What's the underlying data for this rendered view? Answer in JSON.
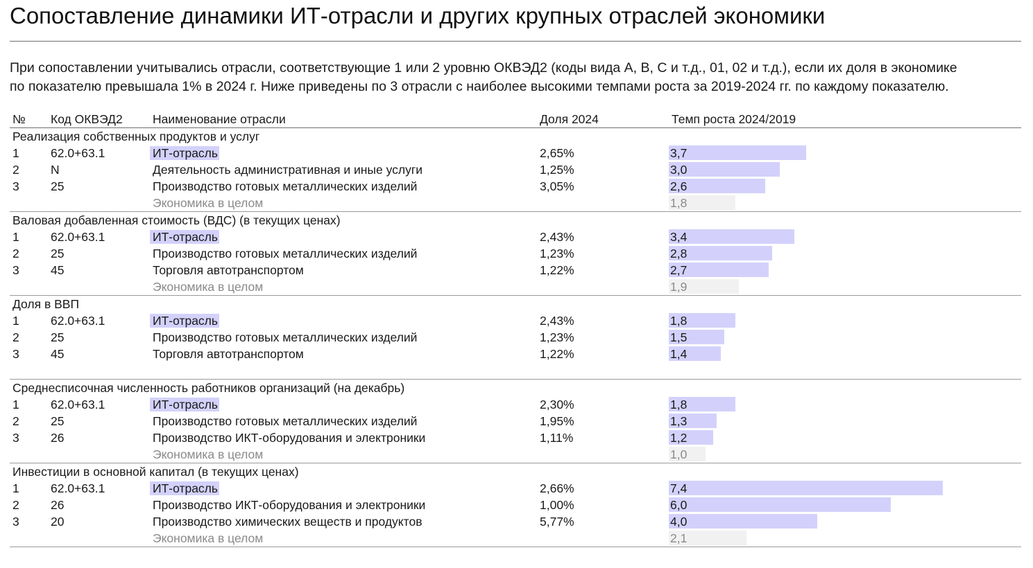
{
  "header": {
    "title": "Сопоставление динамики ИТ-отрасли и других крупных отраслей экономики",
    "description_lines": [
      "При сопоставлении учитывались отрасли, соответствующие 1 или 2 уровню ОКВЭД2 (коды вида А, В, С и т.д., 01, 02 и т.д.), если их доля в экономике",
      "по показателю превышала 1% в 2024 г. Ниже приведены по 3 отрасли с наиболее высокими темпами роста за 2019-2024 гг. по каждому показателю."
    ]
  },
  "columns": {
    "num": "№",
    "code": "Код ОКВЭД2",
    "name": "Наименование отрасли",
    "share": "Доля 2024",
    "rate": "Темп роста 2024/2019"
  },
  "colors": {
    "it_highlight": "#d3d1fb",
    "bar": "#d3d1fb",
    "economy_bar": "#f1f1f1",
    "muted_text": "#8a8a8a"
  },
  "chart_data": {
    "type": "table",
    "bar_scale_max": 7.4,
    "sections": [
      {
        "title": "Реализация собственных продуктов и услуг",
        "rows": [
          {
            "num": "1",
            "code": "62.0+63.1",
            "name": "ИТ-отрасль",
            "share": "2,65%",
            "rate_label": "3,7",
            "rate": 3.7,
            "highlight": true
          },
          {
            "num": "2",
            "code": "N",
            "name": "Деятельность административная и иные услуги",
            "share": "1,25%",
            "rate_label": "3,0",
            "rate": 3.0,
            "highlight": false
          },
          {
            "num": "3",
            "code": "25",
            "name": "Производство готовых металлических изделий",
            "share": "3,05%",
            "rate_label": "2,6",
            "rate": 2.6,
            "highlight": false
          }
        ],
        "economy": {
          "name": "Экономика в целом",
          "rate_label": "1,8",
          "rate": 1.8
        }
      },
      {
        "title": "Валовая добавленная стоимость (ВДС) (в текущих ценах)",
        "rows": [
          {
            "num": "1",
            "code": "62.0+63.1",
            "name": "ИТ-отрасль",
            "share": "2,43%",
            "rate_label": "3,4",
            "rate": 3.4,
            "highlight": true
          },
          {
            "num": "2",
            "code": "25",
            "name": "Производство готовых металлических изделий",
            "share": "1,23%",
            "rate_label": "2,8",
            "rate": 2.8,
            "highlight": false
          },
          {
            "num": "3",
            "code": "45",
            "name": "Торговля автотранспортом",
            "share": "1,22%",
            "rate_label": "2,7",
            "rate": 2.7,
            "highlight": false
          }
        ],
        "economy": {
          "name": "Экономика в целом",
          "rate_label": "1,9",
          "rate": 1.9
        }
      },
      {
        "title": "Доля в ВВП",
        "rows": [
          {
            "num": "1",
            "code": "62.0+63.1",
            "name": "ИТ-отрасль",
            "share": "2,43%",
            "rate_label": "1,8",
            "rate": 1.8,
            "highlight": true
          },
          {
            "num": "2",
            "code": "25",
            "name": "Производство готовых металлических изделий",
            "share": "1,23%",
            "rate_label": "1,5",
            "rate": 1.5,
            "highlight": false
          },
          {
            "num": "3",
            "code": "45",
            "name": "Торговля автотранспортом",
            "share": "1,22%",
            "rate_label": "1,4",
            "rate": 1.4,
            "highlight": false
          }
        ],
        "economy": null
      },
      {
        "title": "Среднесписочная численность работников организаций (на декабрь)",
        "rows": [
          {
            "num": "1",
            "code": "62.0+63.1",
            "name": "ИТ-отрасль",
            "share": "2,30%",
            "rate_label": "1,8",
            "rate": 1.8,
            "highlight": true
          },
          {
            "num": "2",
            "code": "25",
            "name": "Производство готовых металлических изделий",
            "share": "1,95%",
            "rate_label": "1,3",
            "rate": 1.3,
            "highlight": false
          },
          {
            "num": "3",
            "code": "26",
            "name": "Производство ИКТ-оборудования и электроники",
            "share": "1,11%",
            "rate_label": "1,2",
            "rate": 1.2,
            "highlight": false
          }
        ],
        "economy": {
          "name": "Экономика в целом",
          "rate_label": "1,0",
          "rate": 1.0
        }
      },
      {
        "title": "Инвестиции в основной капитал (в текущих ценах)",
        "rows": [
          {
            "num": "1",
            "code": "62.0+63.1",
            "name": "ИТ-отрасль",
            "share": "2,66%",
            "rate_label": "7,4",
            "rate": 7.4,
            "highlight": true
          },
          {
            "num": "2",
            "code": "26",
            "name": "Производство ИКТ-оборудования и электроники",
            "share": "1,00%",
            "rate_label": "6,0",
            "rate": 6.0,
            "highlight": false
          },
          {
            "num": "3",
            "code": "20",
            "name": "Производство химических веществ и продуктов",
            "share": "5,77%",
            "rate_label": "4,0",
            "rate": 4.0,
            "highlight": false
          }
        ],
        "economy": {
          "name": "Экономика в целом",
          "rate_label": "2,1",
          "rate": 2.1
        }
      }
    ]
  }
}
